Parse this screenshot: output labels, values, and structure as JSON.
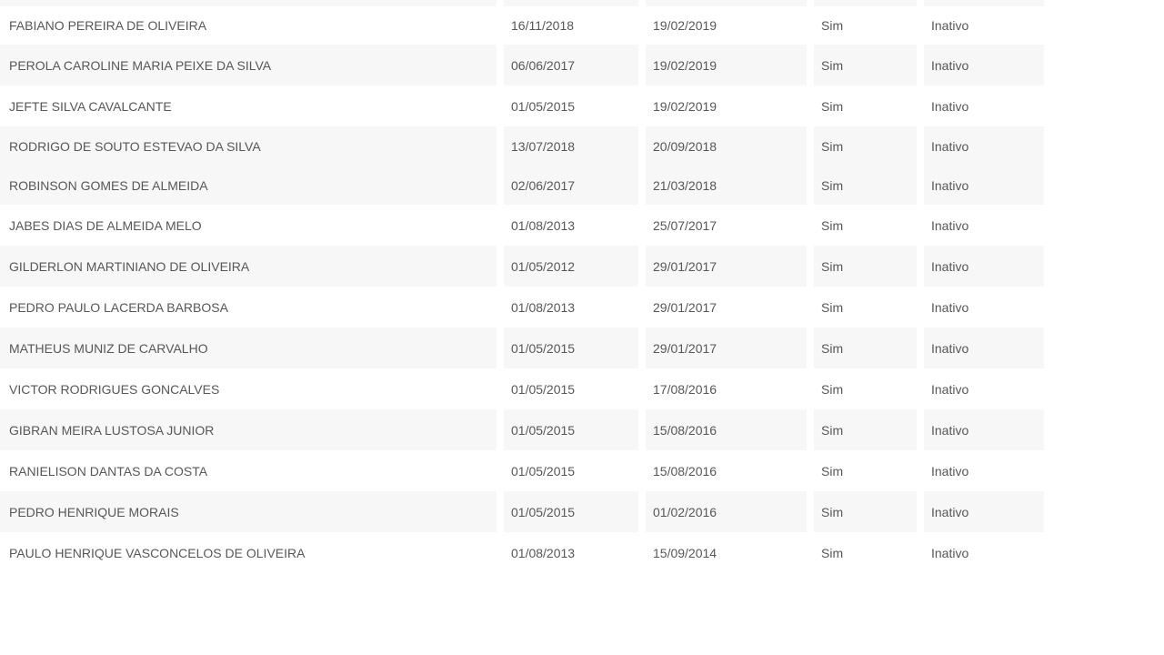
{
  "page": {
    "background_color": "#ffffff"
  },
  "table": {
    "stripe_color": "#f7f7f7",
    "text_color": "#575757",
    "partial_top_row": {
      "visible": true,
      "shaded": true
    },
    "columns": [
      {
        "key": "name"
      },
      {
        "key": "date_start"
      },
      {
        "key": "date_end"
      },
      {
        "key": "flag"
      },
      {
        "key": "status"
      }
    ],
    "rows": [
      {
        "name": "FABIANO PEREIRA DE OLIVEIRA",
        "date_start": "16/11/2018",
        "date_end": "19/02/2019",
        "flag": "Sim",
        "status": "Inativo",
        "shaded": false
      },
      {
        "name": "PEROLA CAROLINE MARIA PEIXE DA SILVA",
        "date_start": "06/06/2017",
        "date_end": "19/02/2019",
        "flag": "Sim",
        "status": "Inativo",
        "shaded": true
      },
      {
        "name": "JEFTE SILVA CAVALCANTE",
        "date_start": "01/05/2015",
        "date_end": "19/02/2019",
        "flag": "Sim",
        "status": "Inativo",
        "shaded": false
      },
      {
        "name": "RODRIGO DE SOUTO ESTEVAO DA SILVA",
        "date_start": "13/07/2018",
        "date_end": "20/09/2018",
        "flag": "Sim",
        "status": "Inativo",
        "shaded": true
      },
      {
        "name": "ROBINSON GOMES DE ALMEIDA",
        "date_start": "02/06/2017",
        "date_end": "21/03/2018",
        "flag": "Sim",
        "status": "Inativo",
        "shaded": true
      },
      {
        "name": "JABES DIAS DE ALMEIDA MELO",
        "date_start": "01/08/2013",
        "date_end": "25/07/2017",
        "flag": "Sim",
        "status": "Inativo",
        "shaded": false
      },
      {
        "name": "GILDERLON MARTINIANO DE OLIVEIRA",
        "date_start": "01/05/2012",
        "date_end": "29/01/2017",
        "flag": "Sim",
        "status": "Inativo",
        "shaded": true
      },
      {
        "name": "PEDRO PAULO LACERDA BARBOSA",
        "date_start": "01/08/2013",
        "date_end": "29/01/2017",
        "flag": "Sim",
        "status": "Inativo",
        "shaded": false
      },
      {
        "name": "MATHEUS MUNIZ DE CARVALHO",
        "date_start": "01/05/2015",
        "date_end": "29/01/2017",
        "flag": "Sim",
        "status": "Inativo",
        "shaded": true
      },
      {
        "name": "VICTOR RODRIGUES GONCALVES",
        "date_start": "01/05/2015",
        "date_end": "17/08/2016",
        "flag": "Sim",
        "status": "Inativo",
        "shaded": false
      },
      {
        "name": "GIBRAN MEIRA LUSTOSA JUNIOR",
        "date_start": "01/05/2015",
        "date_end": "15/08/2016",
        "flag": "Sim",
        "status": "Inativo",
        "shaded": true
      },
      {
        "name": "RANIELISON DANTAS DA COSTA",
        "date_start": "01/05/2015",
        "date_end": "15/08/2016",
        "flag": "Sim",
        "status": "Inativo",
        "shaded": false
      },
      {
        "name": "PEDRO HENRIQUE MORAIS",
        "date_start": "01/05/2015",
        "date_end": "01/02/2016",
        "flag": "Sim",
        "status": "Inativo",
        "shaded": true
      },
      {
        "name": "PAULO HENRIQUE VASCONCELOS DE OLIVEIRA",
        "date_start": "01/08/2013",
        "date_end": "15/09/2014",
        "flag": "Sim",
        "status": "Inativo",
        "shaded": false
      }
    ]
  }
}
